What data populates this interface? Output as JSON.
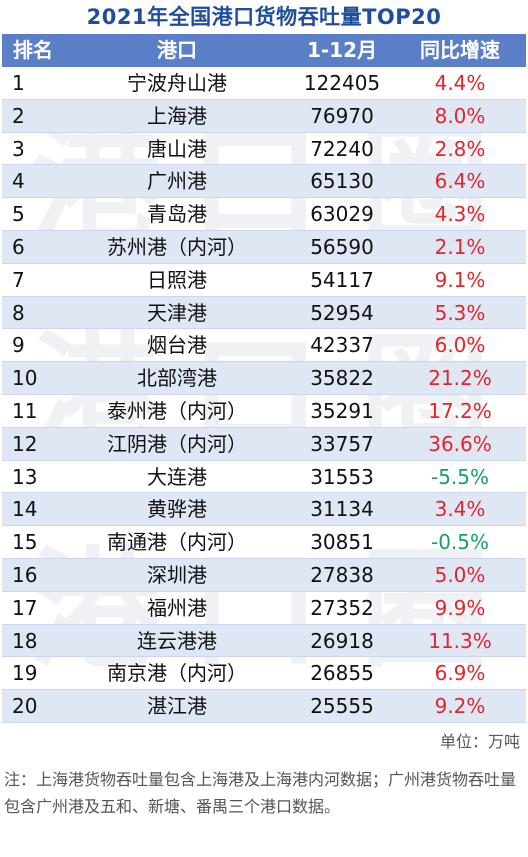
{
  "title": "2021年全国港口货物吞吐量TOP20",
  "headers": [
    "排名",
    "港口",
    "1-12月",
    "同比增速"
  ],
  "rows": [
    {
      "rank": "1",
      "port": "宁波舟山港",
      "value": "122405",
      "growth": "4.4%"
    },
    {
      "rank": "2",
      "port": "上海港",
      "value": "76970",
      "growth": "8.0%"
    },
    {
      "rank": "3",
      "port": "唐山港",
      "value": "72240",
      "growth": "2.8%"
    },
    {
      "rank": "4",
      "port": "广州港",
      "value": "65130",
      "growth": "6.4%"
    },
    {
      "rank": "5",
      "port": "青岛港",
      "value": "63029",
      "growth": "4.3%"
    },
    {
      "rank": "6",
      "port": "苏州港（内河）",
      "value": "56590",
      "growth": "2.1%"
    },
    {
      "rank": "7",
      "port": "日照港",
      "value": "54117",
      "growth": "9.1%"
    },
    {
      "rank": "8",
      "port": "天津港",
      "value": "52954",
      "growth": "5.3%"
    },
    {
      "rank": "9",
      "port": "烟台港",
      "value": "42337",
      "growth": "6.0%"
    },
    {
      "rank": "10",
      "port": "北部湾港",
      "value": "35822",
      "growth": "21.2%"
    },
    {
      "rank": "11",
      "port": "泰州港（内河）",
      "value": "35291",
      "growth": "17.2%"
    },
    {
      "rank": "12",
      "port": "江阴港（内河）",
      "value": "33757",
      "growth": "36.6%"
    },
    {
      "rank": "13",
      "port": "大连港",
      "value": "31553",
      "growth": "-5.5%"
    },
    {
      "rank": "14",
      "port": "黄骅港",
      "value": "31134",
      "growth": "3.4%"
    },
    {
      "rank": "15",
      "port": "南通港（内河）",
      "value": "30851",
      "growth": "-0.5%"
    },
    {
      "rank": "16",
      "port": "深圳港",
      "value": "27838",
      "growth": "5.0%"
    },
    {
      "rank": "17",
      "port": "福州港",
      "value": "27352",
      "growth": "9.9%"
    },
    {
      "rank": "18",
      "port": "连云港港",
      "value": "26918",
      "growth": "11.3%"
    },
    {
      "rank": "19",
      "port": "南京港（内河）",
      "value": "26855",
      "growth": "6.9%"
    },
    {
      "rank": "20",
      "port": "湛江港",
      "value": "25555",
      "growth": "9.2%"
    }
  ],
  "unit": "单位：万吨",
  "note": "注：上海港货物吞吐量包含上海港及上海港内河数据；广州港货物吞吐量包含广州港及五和、新塘、番禺三个港口数据。",
  "colors": {
    "title": "#1f4e9c",
    "header_bg": "#5b7fc7",
    "row_alt_bg": "#dfe7f5",
    "positive": "#e0262b",
    "negative": "#18a06a"
  },
  "watermark_chars": [
    "港",
    "口",
    "圈"
  ]
}
